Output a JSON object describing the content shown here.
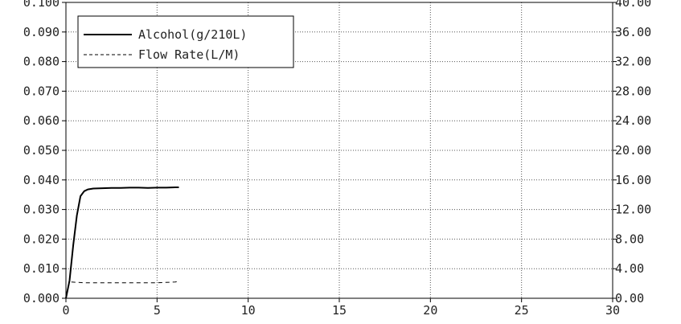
{
  "chart_data": {
    "type": "line",
    "title": "",
    "xlabel": "",
    "ylabel": "",
    "y2label": "",
    "xlim": [
      0,
      30
    ],
    "ylim": [
      0,
      0.1
    ],
    "y2lim": [
      0,
      40
    ],
    "grid": true,
    "legend_position": "top-left",
    "x_ticks": [
      "0",
      "5",
      "10",
      "15",
      "20",
      "25",
      "30"
    ],
    "y_ticks": [
      "0.000",
      "0.010",
      "0.020",
      "0.030",
      "0.040",
      "0.050",
      "0.060",
      "0.070",
      "0.080",
      "0.090",
      "0.100"
    ],
    "y2_ticks": [
      "0.00",
      "4.00",
      "8.00",
      "12.00",
      "16.00",
      "20.00",
      "24.00",
      "28.00",
      "32.00",
      "36.00",
      "40.00"
    ],
    "series": [
      {
        "name": "Alcohol(g/210L)",
        "axis": "left",
        "style": "solid",
        "color": "#000000",
        "x": [
          0.0,
          0.2,
          0.4,
          0.6,
          0.8,
          1.0,
          1.2,
          1.5,
          2.0,
          2.5,
          3.0,
          3.5,
          4.0,
          4.5,
          5.0,
          5.5,
          6.0,
          6.2
        ],
        "y": [
          0.0,
          0.006,
          0.018,
          0.028,
          0.0345,
          0.0362,
          0.0368,
          0.0371,
          0.0372,
          0.0373,
          0.0373,
          0.0374,
          0.0374,
          0.0373,
          0.0374,
          0.0374,
          0.0375,
          0.0375
        ]
      },
      {
        "name": "Flow Rate(L/M)",
        "axis": "right",
        "style": "dashed",
        "color": "#000000",
        "x": [
          0.3,
          1.0,
          2.0,
          3.0,
          4.0,
          5.0,
          6.0,
          6.2
        ],
        "y": [
          2.2,
          2.1,
          2.1,
          2.1,
          2.1,
          2.1,
          2.2,
          2.3
        ]
      }
    ]
  }
}
